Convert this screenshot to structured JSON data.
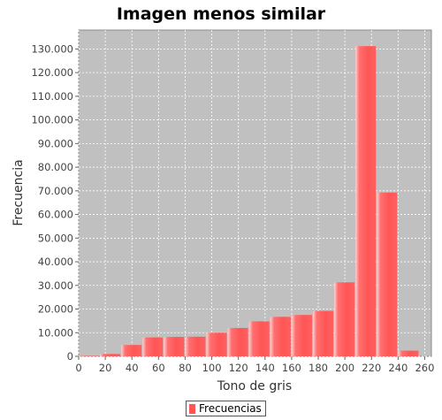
{
  "chart_data": {
    "type": "bar",
    "title": "Imagen menos similar",
    "xlabel": "Tono de gris",
    "ylabel": "Frecuencia",
    "xlim": [
      0,
      265
    ],
    "ylim": [
      0,
      138000
    ],
    "x_ticks": [
      0,
      20,
      40,
      60,
      80,
      100,
      120,
      140,
      160,
      180,
      200,
      220,
      240,
      260
    ],
    "y_ticks": [
      0,
      10000,
      20000,
      30000,
      40000,
      50000,
      60000,
      70000,
      80000,
      90000,
      100000,
      110000,
      120000,
      130000
    ],
    "y_tick_labels": [
      "0",
      "10.000",
      "20.000",
      "30.000",
      "40.000",
      "50.000",
      "60.000",
      "70.000",
      "80.000",
      "90.000",
      "100.000",
      "110.000",
      "120.000",
      "130.000"
    ],
    "grid": true,
    "legend_position": "bottom-center",
    "series": [
      {
        "name": "Frecuencias",
        "color": "#ff5555",
        "bins": [
          {
            "x0": 0,
            "x1": 16,
            "value": 200
          },
          {
            "x0": 16,
            "x1": 32,
            "value": 1000
          },
          {
            "x0": 32,
            "x1": 48,
            "value": 4800
          },
          {
            "x0": 48,
            "x1": 64,
            "value": 8000
          },
          {
            "x0": 64,
            "x1": 80,
            "value": 8200
          },
          {
            "x0": 80,
            "x1": 96,
            "value": 8300
          },
          {
            "x0": 96,
            "x1": 112,
            "value": 10000
          },
          {
            "x0": 112,
            "x1": 128,
            "value": 12000
          },
          {
            "x0": 128,
            "x1": 144,
            "value": 14800
          },
          {
            "x0": 144,
            "x1": 160,
            "value": 16700
          },
          {
            "x0": 160,
            "x1": 176,
            "value": 17500
          },
          {
            "x0": 176,
            "x1": 192,
            "value": 19200
          },
          {
            "x0": 192,
            "x1": 208,
            "value": 31300
          },
          {
            "x0": 208,
            "x1": 224,
            "value": 131200
          },
          {
            "x0": 224,
            "x1": 240,
            "value": 69300
          },
          {
            "x0": 240,
            "x1": 256,
            "value": 2400
          }
        ]
      }
    ]
  }
}
